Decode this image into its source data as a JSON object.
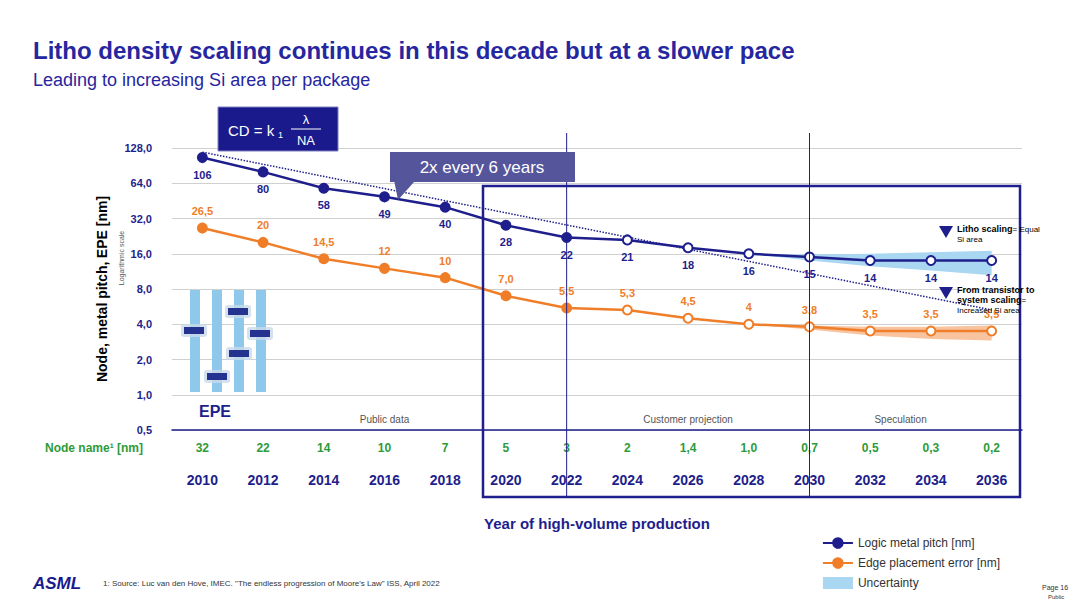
{
  "chart_data": {
    "type": "line",
    "title": "Litho density scaling continues in this decade but at a slower pace",
    "subtitle": "Leading to increasing Si area per package",
    "xlabel": "Year of high-volume production",
    "ylabel": [
      {
        "text": "Node, metal pitch,",
        "color": "#1e1e8c"
      },
      {
        "text": "EPE [nm]",
        "color": "#f07d28"
      }
    ],
    "ylabel_note": "Logarithmic scale",
    "categories": [
      "2010",
      "2012",
      "2014",
      "2016",
      "2018",
      "2020",
      "2022",
      "2024",
      "2026",
      "2028",
      "2030",
      "2032",
      "2034",
      "2036"
    ],
    "node_name_label": "Node name¹ [nm]",
    "node_names": [
      32,
      22,
      14,
      10,
      7,
      5,
      3,
      2,
      {
        "value": 1.4,
        "label": "1,4"
      },
      {
        "value": 1.0,
        "label": "1,0"
      },
      {
        "value": 0.7,
        "label": "0,7"
      },
      {
        "value": 0.5,
        "label": "0,5"
      },
      {
        "value": 0.3,
        "label": "0,3"
      },
      {
        "value": 0.2,
        "label": "0,2"
      }
    ],
    "log": "y",
    "ylim": [
      0.5,
      128
    ],
    "yticks": [
      {
        "value": 0.5,
        "label": "0,5"
      },
      {
        "value": 1,
        "label": "1,0"
      },
      {
        "value": 2,
        "label": "2,0"
      },
      {
        "value": 4,
        "label": "4,0"
      },
      {
        "value": 8,
        "label": "8,0"
      },
      {
        "value": 16,
        "label": "16,0"
      },
      {
        "value": 32,
        "label": "32,0"
      },
      {
        "value": 64,
        "label": "64,0"
      },
      {
        "value": 128,
        "label": "128,0"
      }
    ],
    "grid": true,
    "legend": "bottom-right",
    "data_labels": true,
    "series": [
      {
        "name": "Logic metal pitch [nm]",
        "color": "#1e1e8c",
        "marker": "circle",
        "values": [
          106,
          80,
          58,
          49,
          40,
          28,
          22,
          21,
          18,
          16,
          15,
          14,
          14,
          14
        ],
        "uncertainty": {
          "color": "#a9d6f0",
          "lower": [
            null,
            null,
            null,
            null,
            null,
            null,
            null,
            null,
            null,
            16,
            14,
            12.5,
            11.5,
            10.5
          ],
          "upper": [
            null,
            null,
            null,
            null,
            null,
            null,
            null,
            null,
            null,
            16,
            15.8,
            16,
            16.5,
            17
          ]
        }
      },
      {
        "name": "Edge placement error [nm]",
        "color": "#f07d28",
        "marker": "circle",
        "values": [
          26.5,
          20,
          14.5,
          12,
          10,
          7,
          5.5,
          5.3,
          4.5,
          4,
          3.8,
          3.5,
          3.5,
          3.5
        ],
        "value_labels": [
          "26,5",
          "20",
          "14,5",
          "12",
          "10",
          "7,0",
          "5,5",
          "5,3",
          "4,5",
          "4",
          "3,8",
          "3,5",
          "3,5",
          "3,5"
        ],
        "uncertainty": {
          "color": "#f8c4a0",
          "lower": [
            null,
            null,
            null,
            null,
            null,
            null,
            null,
            null,
            null,
            4,
            3.6,
            3.2,
            3.0,
            2.9
          ],
          "upper": [
            null,
            null,
            null,
            null,
            null,
            null,
            null,
            null,
            null,
            4,
            3.9,
            3.8,
            3.8,
            3.9
          ]
        }
      }
    ],
    "uncertainty_label": "Uncertainty",
    "trend": {
      "label": "2x every 6 years",
      "line_style": "dotted",
      "color": "#1e1e8c",
      "values": [
        118,
        null,
        null,
        null,
        null,
        null,
        null,
        null,
        null,
        null,
        null,
        null,
        null,
        5.3
      ]
    },
    "regions": [
      {
        "label": "Public data",
        "start": "2010",
        "end": "2022"
      },
      {
        "label": "Customer projection",
        "start": "2022",
        "end": "2030"
      },
      {
        "label": "Speculation",
        "start": "2030",
        "end": "2036"
      }
    ],
    "formula": {
      "text": "CD = k",
      "subscript": "1",
      "numerator": "λ",
      "denominator": "NA"
    },
    "annotations": [
      {
        "text": "Litho scaling",
        "note": "= Equal Si area"
      },
      {
        "text": "From transistor to system scaling",
        "note": "= Increased Si area"
      }
    ],
    "inset_label": "EPE",
    "logo": "ASML",
    "footnote": "1: Source: Luc van den Hove, IMEC. \"The endless progression of Moore's Law\" ISS, April 2022",
    "page": "Page 16",
    "classification": "Public"
  }
}
